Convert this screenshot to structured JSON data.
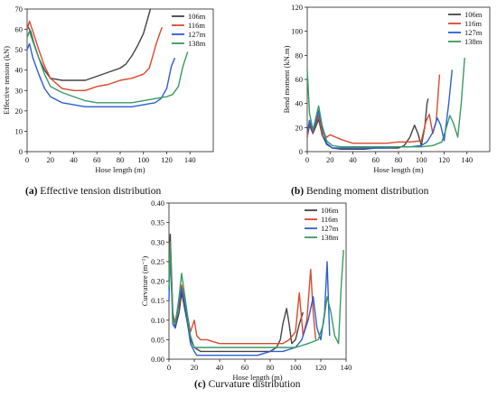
{
  "colors": {
    "106m": "#444444",
    "116m": "#d94a2c",
    "127m": "#2a5fd6",
    "138m": "#3a9a63"
  },
  "captions": {
    "a": {
      "tag": "(a)",
      "text": "Effective tension distribution"
    },
    "b": {
      "tag": "(b)",
      "text": "Bending moment distribution"
    },
    "c": {
      "tag": "(c)",
      "text": "Curvature distribution"
    }
  },
  "chart_data": [
    {
      "id": "a",
      "type": "line",
      "xlabel": "Hose length  (m)",
      "ylabel": "Effective tension (kN)",
      "xlim": [
        0,
        160
      ],
      "ylim": [
        0,
        70
      ],
      "xticks": [
        0,
        20,
        40,
        60,
        80,
        100,
        120,
        140
      ],
      "yticks": [
        0,
        10,
        20,
        30,
        40,
        50,
        60,
        70
      ],
      "legend": "top-right",
      "series": [
        {
          "name": "106m",
          "x": [
            0,
            3,
            6,
            10,
            15,
            20,
            30,
            40,
            50,
            60,
            70,
            80,
            85,
            90,
            95,
            100,
            104,
            106
          ],
          "y": [
            62,
            59,
            53,
            46,
            40,
            36,
            35,
            35,
            35,
            37,
            39,
            41,
            43,
            47,
            52,
            58,
            66,
            70
          ]
        },
        {
          "name": "116m",
          "x": [
            0,
            2,
            5,
            10,
            15,
            20,
            30,
            40,
            50,
            60,
            70,
            80,
            90,
            100,
            105,
            108,
            111,
            114,
            116
          ],
          "y": [
            60,
            64,
            59,
            50,
            42,
            36,
            31,
            30,
            30,
            32,
            33,
            35,
            36,
            38,
            41,
            47,
            53,
            58,
            61
          ]
        },
        {
          "name": "127m",
          "x": [
            0,
            2,
            5,
            10,
            15,
            20,
            30,
            40,
            50,
            60,
            70,
            80,
            90,
            100,
            110,
            115,
            120,
            124,
            127
          ],
          "y": [
            50,
            53,
            46,
            38,
            31,
            27,
            24,
            23,
            22,
            22,
            22,
            22,
            22,
            23,
            24,
            26,
            31,
            42,
            46
          ]
        },
        {
          "name": "138m",
          "x": [
            0,
            2,
            5,
            10,
            15,
            20,
            30,
            40,
            50,
            60,
            70,
            80,
            90,
            100,
            110,
            120,
            125,
            130,
            134,
            138
          ],
          "y": [
            56,
            59,
            54,
            46,
            38,
            32,
            29,
            27,
            25,
            24,
            24,
            24,
            24,
            25,
            26,
            27,
            28,
            32,
            42,
            49
          ]
        }
      ]
    },
    {
      "id": "b",
      "type": "line",
      "xlabel": "Hose length  (m)",
      "ylabel": "Bend moment (kN.m)",
      "xlim": [
        0,
        160
      ],
      "ylim": [
        0,
        120
      ],
      "xticks": [
        0,
        20,
        40,
        60,
        80,
        100,
        120,
        140
      ],
      "yticks": [
        0,
        20,
        40,
        60,
        80,
        100,
        120
      ],
      "legend": "top-right",
      "series": [
        {
          "name": "106m",
          "x": [
            0,
            2,
            5,
            8,
            10,
            13,
            17,
            22,
            30,
            40,
            50,
            60,
            70,
            80,
            85,
            90,
            94,
            97,
            100,
            103,
            105,
            106
          ],
          "y": [
            12,
            22,
            15,
            22,
            27,
            14,
            6,
            3,
            2,
            2,
            2,
            3,
            3,
            3,
            5,
            12,
            22,
            15,
            5,
            20,
            40,
            44
          ]
        },
        {
          "name": "116m",
          "x": [
            0,
            2,
            5,
            8,
            10,
            13,
            17,
            20,
            25,
            30,
            40,
            50,
            60,
            70,
            80,
            90,
            100,
            104,
            107,
            110,
            113,
            116
          ],
          "y": [
            12,
            25,
            16,
            25,
            30,
            16,
            12,
            14,
            12,
            10,
            7,
            7,
            7,
            7,
            8,
            8,
            9,
            25,
            31,
            15,
            25,
            64
          ]
        },
        {
          "name": "127m",
          "x": [
            0,
            2,
            5,
            8,
            10,
            13,
            17,
            22,
            30,
            40,
            50,
            60,
            70,
            80,
            90,
            100,
            105,
            110,
            114,
            117,
            120,
            124,
            127
          ],
          "y": [
            15,
            26,
            17,
            26,
            34,
            20,
            7,
            3,
            3,
            3,
            3,
            3,
            3,
            4,
            4,
            5,
            8,
            16,
            28,
            22,
            9,
            40,
            68
          ]
        },
        {
          "name": "138m",
          "x": [
            0,
            2,
            5,
            8,
            10,
            13,
            17,
            22,
            30,
            40,
            50,
            60,
            70,
            80,
            90,
            100,
            110,
            118,
            122,
            125,
            128,
            132,
            135,
            138
          ],
          "y": [
            68,
            32,
            18,
            30,
            38,
            22,
            9,
            5,
            4,
            4,
            4,
            4,
            4,
            4,
            4,
            4,
            5,
            8,
            20,
            30,
            24,
            12,
            40,
            78
          ]
        }
      ]
    },
    {
      "id": "c",
      "type": "line",
      "xlabel": "Hose length  (m)",
      "ylabel": "Curvature (m⁻¹)",
      "xlim": [
        0,
        140
      ],
      "ylim": [
        0.0,
        0.4
      ],
      "xticks": [
        0,
        20,
        40,
        60,
        80,
        100,
        120,
        140
      ],
      "yticks": [
        "0.00",
        "0.05",
        "0.10",
        "0.15",
        "0.20",
        "0.25",
        "0.30",
        "0.35",
        "0.40"
      ],
      "legend": "top-right",
      "series": [
        {
          "name": "106m",
          "x": [
            0,
            1,
            3,
            5,
            8,
            10,
            13,
            17,
            20,
            25,
            30,
            40,
            50,
            60,
            70,
            80,
            85,
            88,
            90,
            93,
            95,
            97,
            100,
            103,
            106
          ],
          "y": [
            0.2,
            0.32,
            0.12,
            0.08,
            0.12,
            0.17,
            0.12,
            0.05,
            0.03,
            0.02,
            0.02,
            0.02,
            0.02,
            0.02,
            0.02,
            0.02,
            0.03,
            0.05,
            0.09,
            0.13,
            0.09,
            0.04,
            0.05,
            0.09,
            0.12
          ]
        },
        {
          "name": "116m",
          "x": [
            0,
            1,
            3,
            5,
            8,
            10,
            13,
            17,
            20,
            22,
            25,
            30,
            40,
            50,
            60,
            70,
            80,
            90,
            95,
            100,
            103,
            106,
            109,
            112,
            114,
            116
          ],
          "y": [
            0.18,
            0.3,
            0.1,
            0.1,
            0.14,
            0.19,
            0.14,
            0.07,
            0.1,
            0.06,
            0.05,
            0.05,
            0.04,
            0.04,
            0.04,
            0.04,
            0.04,
            0.04,
            0.05,
            0.07,
            0.17,
            0.06,
            0.1,
            0.23,
            0.12,
            0.05
          ]
        },
        {
          "name": "127m",
          "x": [
            0,
            1,
            3,
            5,
            8,
            10,
            13,
            17,
            20,
            22,
            25,
            30,
            40,
            50,
            60,
            70,
            80,
            90,
            100,
            105,
            110,
            114,
            117,
            120,
            123,
            125,
            127
          ],
          "y": [
            0.15,
            0.28,
            0.09,
            0.08,
            0.15,
            0.18,
            0.13,
            0.04,
            0.02,
            0.01,
            0.01,
            0.01,
            0.01,
            0.01,
            0.01,
            0.01,
            0.02,
            0.02,
            0.03,
            0.05,
            0.1,
            0.16,
            0.08,
            0.05,
            0.12,
            0.25,
            0.06
          ]
        },
        {
          "name": "138m",
          "x": [
            0,
            1,
            3,
            5,
            8,
            10,
            13,
            17,
            20,
            22,
            25,
            30,
            40,
            50,
            60,
            70,
            80,
            90,
            100,
            110,
            118,
            122,
            125,
            128,
            131,
            134,
            136,
            138
          ],
          "y": [
            0.18,
            0.3,
            0.1,
            0.09,
            0.16,
            0.22,
            0.15,
            0.06,
            0.03,
            0.03,
            0.03,
            0.03,
            0.03,
            0.03,
            0.03,
            0.03,
            0.03,
            0.03,
            0.03,
            0.04,
            0.05,
            0.09,
            0.16,
            0.12,
            0.06,
            0.04,
            0.18,
            0.28
          ]
        }
      ]
    }
  ]
}
